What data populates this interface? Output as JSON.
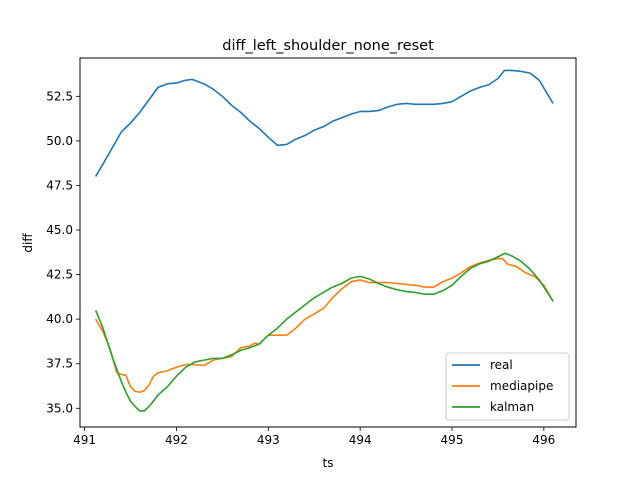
{
  "chart_data": {
    "type": "line",
    "title": "diff_left_shoulder_none_reset",
    "xlabel": "ts",
    "ylabel": "diff",
    "xlim": [
      490.95,
      496.35
    ],
    "ylim": [
      33.95,
      54.65
    ],
    "xticks": [
      491,
      492,
      493,
      494,
      495,
      496
    ],
    "yticks": [
      35.0,
      37.5,
      40.0,
      42.5,
      45.0,
      47.5,
      50.0,
      52.5
    ],
    "xtick_labels": [
      "491",
      "492",
      "493",
      "494",
      "495",
      "496"
    ],
    "ytick_labels": [
      "35.0",
      "37.5",
      "40.0",
      "42.5",
      "45.0",
      "47.5",
      "50.0",
      "52.5"
    ],
    "legend_position": "lower-right",
    "grid": false,
    "series": [
      {
        "name": "real",
        "color": "#1f77b4",
        "x": [
          491.12,
          491.2,
          491.3,
          491.4,
          491.5,
          491.6,
          491.7,
          491.8,
          491.9,
          492.0,
          492.1,
          492.17,
          492.3,
          492.4,
          492.5,
          492.6,
          492.7,
          492.8,
          492.9,
          493.0,
          493.1,
          493.2,
          493.3,
          493.4,
          493.5,
          493.6,
          493.7,
          493.8,
          493.9,
          494.0,
          494.1,
          494.2,
          494.3,
          494.4,
          494.5,
          494.6,
          494.7,
          494.8,
          494.9,
          495.0,
          495.1,
          495.2,
          495.3,
          495.4,
          495.5,
          495.57,
          495.65,
          495.75,
          495.85,
          495.95,
          496.1
        ],
        "y": [
          48.0,
          48.7,
          49.6,
          50.5,
          51.0,
          51.6,
          52.3,
          53.0,
          53.2,
          53.25,
          53.4,
          53.45,
          53.2,
          52.9,
          52.5,
          52.0,
          51.6,
          51.1,
          50.7,
          50.2,
          49.75,
          49.8,
          50.1,
          50.3,
          50.6,
          50.8,
          51.1,
          51.3,
          51.5,
          51.65,
          51.65,
          51.7,
          51.9,
          52.05,
          52.1,
          52.05,
          52.05,
          52.05,
          52.1,
          52.2,
          52.5,
          52.8,
          53.0,
          53.15,
          53.5,
          53.95,
          53.95,
          53.9,
          53.8,
          53.4,
          52.1
        ]
      },
      {
        "name": "mediapipe",
        "color": "#ff7f0e",
        "x": [
          491.12,
          491.2,
          491.28,
          491.35,
          491.4,
          491.45,
          491.5,
          491.55,
          491.6,
          491.65,
          491.7,
          491.75,
          491.8,
          491.9,
          492.0,
          492.1,
          492.2,
          492.3,
          492.4,
          492.5,
          492.6,
          492.7,
          492.8,
          492.85,
          492.9,
          493.0,
          493.1,
          493.2,
          493.3,
          493.4,
          493.5,
          493.6,
          493.7,
          493.8,
          493.9,
          494.0,
          494.1,
          494.2,
          494.3,
          494.4,
          494.5,
          494.6,
          494.7,
          494.8,
          494.9,
          495.0,
          495.1,
          495.2,
          495.3,
          495.4,
          495.5,
          495.55,
          495.6,
          495.7,
          495.8,
          495.9,
          496.0,
          496.1
        ],
        "y": [
          40.0,
          39.3,
          38.3,
          37.0,
          36.9,
          36.85,
          36.2,
          35.95,
          35.9,
          36.0,
          36.3,
          36.8,
          37.0,
          37.1,
          37.3,
          37.45,
          37.45,
          37.4,
          37.7,
          37.8,
          37.9,
          38.4,
          38.5,
          38.65,
          38.6,
          39.1,
          39.1,
          39.1,
          39.5,
          40.0,
          40.3,
          40.6,
          41.2,
          41.7,
          42.1,
          42.2,
          42.05,
          42.05,
          42.05,
          42.0,
          41.95,
          41.9,
          41.8,
          41.8,
          42.1,
          42.3,
          42.6,
          42.95,
          43.15,
          43.3,
          43.4,
          43.4,
          43.1,
          42.95,
          42.6,
          42.4,
          41.9,
          41.0
        ]
      },
      {
        "name": "kalman",
        "color": "#2ca02c",
        "x": [
          491.12,
          491.2,
          491.3,
          491.4,
          491.45,
          491.5,
          491.55,
          491.6,
          491.65,
          491.7,
          491.75,
          491.8,
          491.9,
          492.0,
          492.1,
          492.2,
          492.3,
          492.4,
          492.5,
          492.6,
          492.7,
          492.8,
          492.9,
          493.0,
          493.1,
          493.2,
          493.3,
          493.4,
          493.5,
          493.6,
          493.7,
          493.8,
          493.9,
          494.0,
          494.1,
          494.2,
          494.3,
          494.4,
          494.5,
          494.6,
          494.7,
          494.8,
          494.9,
          495.0,
          495.1,
          495.2,
          495.3,
          495.4,
          495.5,
          495.58,
          495.65,
          495.75,
          495.85,
          495.95,
          496.1
        ],
        "y": [
          40.5,
          39.5,
          37.9,
          36.5,
          35.9,
          35.4,
          35.1,
          34.85,
          34.85,
          35.1,
          35.4,
          35.75,
          36.2,
          36.8,
          37.3,
          37.6,
          37.7,
          37.8,
          37.8,
          38.0,
          38.25,
          38.4,
          38.6,
          39.1,
          39.5,
          40.0,
          40.4,
          40.8,
          41.2,
          41.5,
          41.8,
          42.0,
          42.3,
          42.4,
          42.25,
          42.0,
          41.8,
          41.65,
          41.55,
          41.5,
          41.4,
          41.4,
          41.6,
          41.9,
          42.4,
          42.85,
          43.1,
          43.25,
          43.5,
          43.7,
          43.55,
          43.25,
          42.8,
          42.2,
          41.0
        ]
      }
    ]
  }
}
